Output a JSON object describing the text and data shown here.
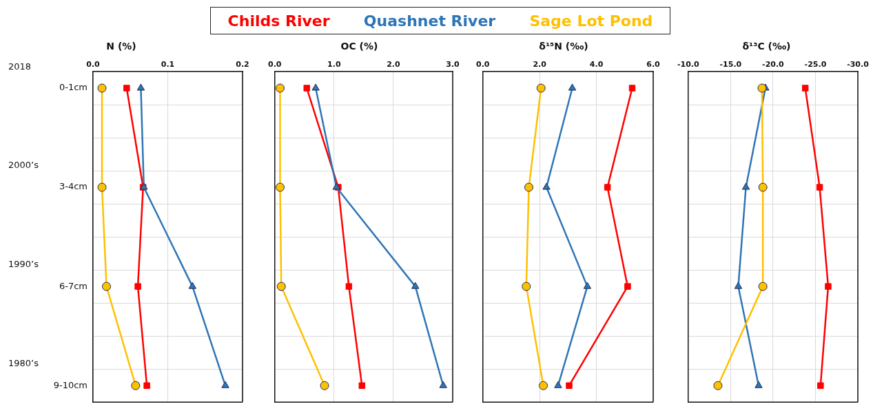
{
  "chart_data": [
    {
      "type": "line",
      "orientation": "horizontal",
      "title": "N (%)",
      "legend": "top",
      "grid": true,
      "line_style": "solid",
      "annotations": [
        "2018",
        "2000’s",
        "1990’s",
        "1980’s"
      ],
      "categories": [
        "0-1cm",
        "3-4cm",
        "6-7cm",
        "9-10cm"
      ],
      "xlim": [
        0,
        0.2
      ],
      "xticks": [
        {
          "value": 0,
          "label": "0.0"
        },
        {
          "value": 0.1,
          "label": "0.1"
        },
        {
          "value": 0.2,
          "label": "0.2"
        }
      ],
      "series": [
        {
          "name": "Childs River",
          "color": "#ff0000",
          "marker": "square",
          "values": [
            0.045,
            0.067,
            0.06,
            0.072
          ]
        },
        {
          "name": "Quashnet River",
          "color": "#2e75b6",
          "marker": "triangle",
          "values": [
            0.064,
            0.068,
            0.133,
            0.177
          ]
        },
        {
          "name": "Sage Lot Pond",
          "color": "#ffc000",
          "marker": "circle",
          "values": [
            0.012,
            0.012,
            0.018,
            0.057
          ]
        }
      ]
    },
    {
      "type": "line",
      "orientation": "horizontal",
      "title": "OC (%)",
      "grid": true,
      "line_style": "solid",
      "tick_labels": "x",
      "categories": [
        null,
        null,
        null,
        null
      ],
      "xlim": [
        0,
        3
      ],
      "xticks": [
        {
          "value": 0,
          "label": "0.0"
        },
        {
          "value": 1,
          "label": "1.0"
        },
        {
          "value": 2,
          "label": "2.0"
        },
        {
          "value": 3,
          "label": "3.0"
        }
      ],
      "series": [
        {
          "color": "#ff0000",
          "marker": "square",
          "values": [
            0.54,
            1.07,
            1.25,
            1.47
          ]
        },
        {
          "color": "#2e75b6",
          "marker": "triangle",
          "values": [
            0.69,
            1.04,
            2.37,
            2.84
          ]
        },
        {
          "color": "#ffc000",
          "marker": "circle",
          "values": [
            0.09,
            0.09,
            0.11,
            0.84
          ]
        }
      ]
    },
    {
      "type": "line",
      "orientation": "horizontal",
      "title": "δ¹⁵N (‰)",
      "grid": true,
      "line_style": "solid",
      "tick_labels": "x",
      "categories": [
        null,
        null,
        null,
        null
      ],
      "xlim": [
        0,
        6
      ],
      "xticks": [
        {
          "value": 0,
          "label": "0.0"
        },
        {
          "value": 2,
          "label": "2.0"
        },
        {
          "value": 4,
          "label": "4.0"
        },
        {
          "value": 6,
          "label": "6.0"
        }
      ],
      "series": [
        {
          "color": "#ff0000",
          "marker": "square",
          "values": [
            5.26,
            4.39,
            5.1,
            3.04
          ]
        },
        {
          "color": "#2e75b6",
          "marker": "triangle",
          "values": [
            3.15,
            2.24,
            3.68,
            2.65
          ]
        },
        {
          "color": "#ffc000",
          "marker": "circle",
          "values": [
            2.05,
            1.62,
            1.53,
            2.13
          ]
        }
      ]
    },
    {
      "type": "line",
      "orientation": "horizontal",
      "title": "δ¹³C (‰)",
      "grid": true,
      "line_style": "solid",
      "tick_labels": "x",
      "categories": [
        null,
        null,
        null,
        null
      ],
      "xlim": [
        -10,
        -30
      ],
      "xticks": [
        {
          "value": -10,
          "label": "-10.0"
        },
        {
          "value": -15,
          "label": "-15.0"
        },
        {
          "value": -20,
          "label": "-20.0"
        },
        {
          "value": -25,
          "label": "-25.0"
        },
        {
          "value": -30,
          "label": "-30.0"
        }
      ],
      "series": [
        {
          "color": "#ff0000",
          "marker": "square",
          "values": [
            -23.8,
            -25.5,
            -26.5,
            -25.6
          ]
        },
        {
          "color": "#2e75b6",
          "marker": "triangle",
          "values": [
            -19.1,
            -16.8,
            -15.9,
            -18.3
          ]
        },
        {
          "color": "#ffc000",
          "marker": "circle",
          "values": [
            -18.7,
            -18.8,
            -18.8,
            -13.5
          ]
        }
      ]
    }
  ]
}
